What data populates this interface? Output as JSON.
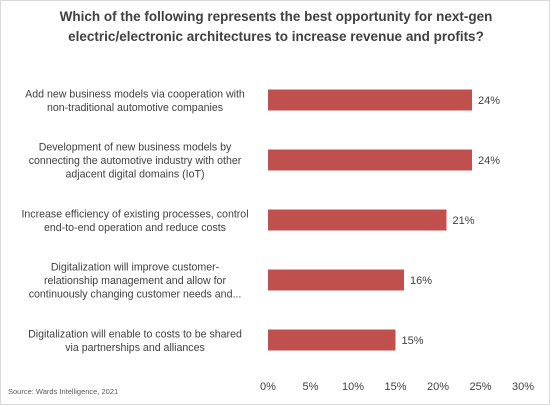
{
  "chart_data": {
    "type": "bar",
    "orientation": "horizontal",
    "title_lines": [
      "Which of the following represents the best opportunity for next-gen",
      "electric/electronic architectures to increase revenue and profits?"
    ],
    "categories": [
      [
        "Add new business models via cooperation with",
        "non-traditional automotive companies"
      ],
      [
        "Development of new business models by",
        "connecting the automotive industry with other",
        "adjacent digital domains (IoT)"
      ],
      [
        "Increase efficiency of existing processes, control",
        "end-to-end operation and reduce costs"
      ],
      [
        "Digitalization will improve customer-",
        "relationship management and allow for",
        "continuously changing customer needs and..."
      ],
      [
        "Digitalization will enable to costs to be shared",
        "via partnerships and alliances"
      ]
    ],
    "values": [
      24,
      24,
      21,
      16,
      15
    ],
    "value_labels": [
      "24%",
      "24%",
      "21%",
      "16%",
      "15%"
    ],
    "xlim": [
      0,
      30
    ],
    "xticks": [
      0,
      5,
      10,
      15,
      20,
      25,
      30
    ],
    "xtick_labels": [
      "0%",
      "5%",
      "10%",
      "15%",
      "20%",
      "25%",
      "30%"
    ],
    "bar_color": "#c0504d",
    "grid": false,
    "source": "Source: Wards Intelligence, 2021"
  }
}
